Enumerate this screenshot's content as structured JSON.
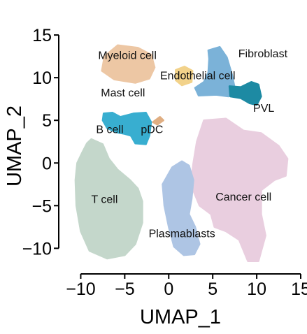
{
  "chart_data": {
    "type": "scatter",
    "title": "",
    "xlabel": "UMAP_1",
    "ylabel": "UMAP_2",
    "xlim": [
      -12.5,
      15
    ],
    "ylim": [
      -13,
      15.5
    ],
    "xticks": [
      {
        "value": -10,
        "label": "−10"
      },
      {
        "value": -5,
        "label": "−5"
      },
      {
        "value": 0,
        "label": "0"
      },
      {
        "value": 5,
        "label": "5"
      },
      {
        "value": 10,
        "label": "10"
      },
      {
        "value": 15,
        "label": "15"
      }
    ],
    "yticks": [
      {
        "value": -10,
        "label": "−10"
      },
      {
        "value": -5,
        "label": "−5"
      },
      {
        "value": 0,
        "label": "0"
      },
      {
        "value": 5,
        "label": "5"
      },
      {
        "value": 10,
        "label": "10"
      },
      {
        "value": 15,
        "label": "15"
      }
    ],
    "grid": false,
    "legend": "none",
    "clusters": [
      {
        "label": "T cell",
        "color": "#c4d7cb",
        "label_xy": [
          -7.3,
          -4.7
        ],
        "outline": [
          [
            -8.8,
            2.8
          ],
          [
            -7.5,
            2.2
          ],
          [
            -6.8,
            0.5
          ],
          [
            -5.8,
            -0.8
          ],
          [
            -4.4,
            -2.0
          ],
          [
            -3.5,
            -3.0
          ],
          [
            -3.0,
            -4.5
          ],
          [
            -3.0,
            -7.0
          ],
          [
            -3.8,
            -9.5
          ],
          [
            -5.0,
            -10.8
          ],
          [
            -7.0,
            -11.2
          ],
          [
            -9.0,
            -10.3
          ],
          [
            -10.0,
            -8.0
          ],
          [
            -10.5,
            -5.0
          ],
          [
            -10.6,
            -2.0
          ],
          [
            -10.4,
            0.0
          ],
          [
            -9.8,
            1.3
          ],
          [
            -9.3,
            2.3
          ]
        ]
      },
      {
        "label": "Cancer cell",
        "color": "#e9cedf",
        "label_xy": [
          8.5,
          -4.4
        ],
        "outline": [
          [
            4.0,
            5.0
          ],
          [
            6.5,
            5.2
          ],
          [
            8.5,
            3.8
          ],
          [
            10.5,
            3.5
          ],
          [
            12.5,
            2.0
          ],
          [
            13.5,
            0.5
          ],
          [
            13.3,
            -1.5
          ],
          [
            12.0,
            -2.0
          ],
          [
            10.5,
            -3.2
          ],
          [
            10.5,
            -6.0
          ],
          [
            11.0,
            -8.5
          ],
          [
            10.2,
            -11.5
          ],
          [
            9.0,
            -11.5
          ],
          [
            8.0,
            -9.0
          ],
          [
            6.5,
            -8.0
          ],
          [
            5.2,
            -7.5
          ],
          [
            4.8,
            -6.0
          ],
          [
            3.5,
            -5.0
          ],
          [
            2.5,
            -2.5
          ],
          [
            2.8,
            0.0
          ],
          [
            3.2,
            2.5
          ]
        ]
      },
      {
        "label": "Plasmablasts",
        "color": "#aec5e4",
        "label_xy": [
          1.5,
          -8.7
        ],
        "outline": [
          [
            0.4,
            -0.5
          ],
          [
            1.5,
            0.2
          ],
          [
            2.3,
            -0.3
          ],
          [
            2.8,
            -2.0
          ],
          [
            2.6,
            -4.2
          ],
          [
            2.3,
            -6.0
          ],
          [
            3.0,
            -7.5
          ],
          [
            3.5,
            -9.5
          ],
          [
            2.9,
            -10.7
          ],
          [
            1.7,
            -10.8
          ],
          [
            0.6,
            -9.8
          ],
          [
            0.0,
            -7.5
          ],
          [
            -0.5,
            -5.0
          ],
          [
            -0.7,
            -2.5
          ]
        ]
      },
      {
        "label": "Myeloid cell",
        "color": "#edc7a4",
        "label_xy": [
          -4.7,
          12.2
        ],
        "outline": [
          [
            -7.3,
            12.5
          ],
          [
            -5.8,
            13.8
          ],
          [
            -3.5,
            13.5
          ],
          [
            -2.0,
            12.7
          ],
          [
            -1.6,
            11.2
          ],
          [
            -2.2,
            9.9
          ],
          [
            -3.8,
            9.4
          ],
          [
            -6.2,
            9.8
          ],
          [
            -7.6,
            10.8
          ]
        ]
      },
      {
        "label": "Endothelial cell",
        "color": "#f2d28a",
        "label_xy": [
          3.3,
          9.8
        ],
        "outline": [
          [
            0.8,
            10.9
          ],
          [
            1.8,
            11.3
          ],
          [
            2.7,
            10.8
          ],
          [
            2.6,
            9.5
          ],
          [
            1.5,
            9.1
          ],
          [
            0.8,
            9.7
          ]
        ]
      },
      {
        "label": "Fibroblast",
        "color": "#7bb2d8",
        "label_xy": [
          10.7,
          12.4
        ],
        "outline": [
          [
            4.5,
            13.2
          ],
          [
            5.8,
            13.6
          ],
          [
            6.6,
            12.4
          ],
          [
            7.2,
            10.3
          ],
          [
            7.5,
            8.8
          ],
          [
            6.8,
            7.8
          ],
          [
            5.4,
            8.0
          ],
          [
            3.4,
            7.9
          ],
          [
            3.0,
            8.8
          ],
          [
            4.0,
            9.5
          ],
          [
            4.5,
            10.6
          ],
          [
            4.6,
            12.2
          ]
        ]
      },
      {
        "label": "PVL",
        "color": "#1d8aa3",
        "label_xy": [
          10.8,
          6.0
        ],
        "outline": [
          [
            6.9,
            9.0
          ],
          [
            8.2,
            8.9
          ],
          [
            9.4,
            9.5
          ],
          [
            10.2,
            9.2
          ],
          [
            10.5,
            7.8
          ],
          [
            10.0,
            6.8
          ],
          [
            9.2,
            7.0
          ],
          [
            8.2,
            7.6
          ],
          [
            7.0,
            7.8
          ]
        ]
      },
      {
        "label": "Mast cell",
        "color": "#edc7a4",
        "label_xy": [
          -5.2,
          7.8
        ],
        "outline": []
      },
      {
        "label": "B cell",
        "color": "#38aed0",
        "label_xy": [
          -6.7,
          3.5
        ],
        "outline": [
          [
            -7.4,
            5.8
          ],
          [
            -6.4,
            5.9
          ],
          [
            -5.5,
            5.4
          ],
          [
            -4.0,
            5.8
          ],
          [
            -2.6,
            5.9
          ],
          [
            -2.0,
            4.8
          ],
          [
            -2.2,
            3.2
          ],
          [
            -2.6,
            2.2
          ],
          [
            -3.8,
            2.3
          ],
          [
            -4.3,
            3.2
          ],
          [
            -5.0,
            3.4
          ],
          [
            -6.0,
            3.6
          ],
          [
            -7.0,
            4.1
          ],
          [
            -7.5,
            5.0
          ]
        ]
      },
      {
        "label": "pDC",
        "color": "#e0ae82",
        "label_xy": [
          -1.9,
          3.5
        ],
        "outline": [
          [
            -1.8,
            4.8
          ],
          [
            -1.0,
            5.4
          ],
          [
            -0.6,
            5.0
          ],
          [
            -1.3,
            4.5
          ]
        ]
      }
    ]
  }
}
